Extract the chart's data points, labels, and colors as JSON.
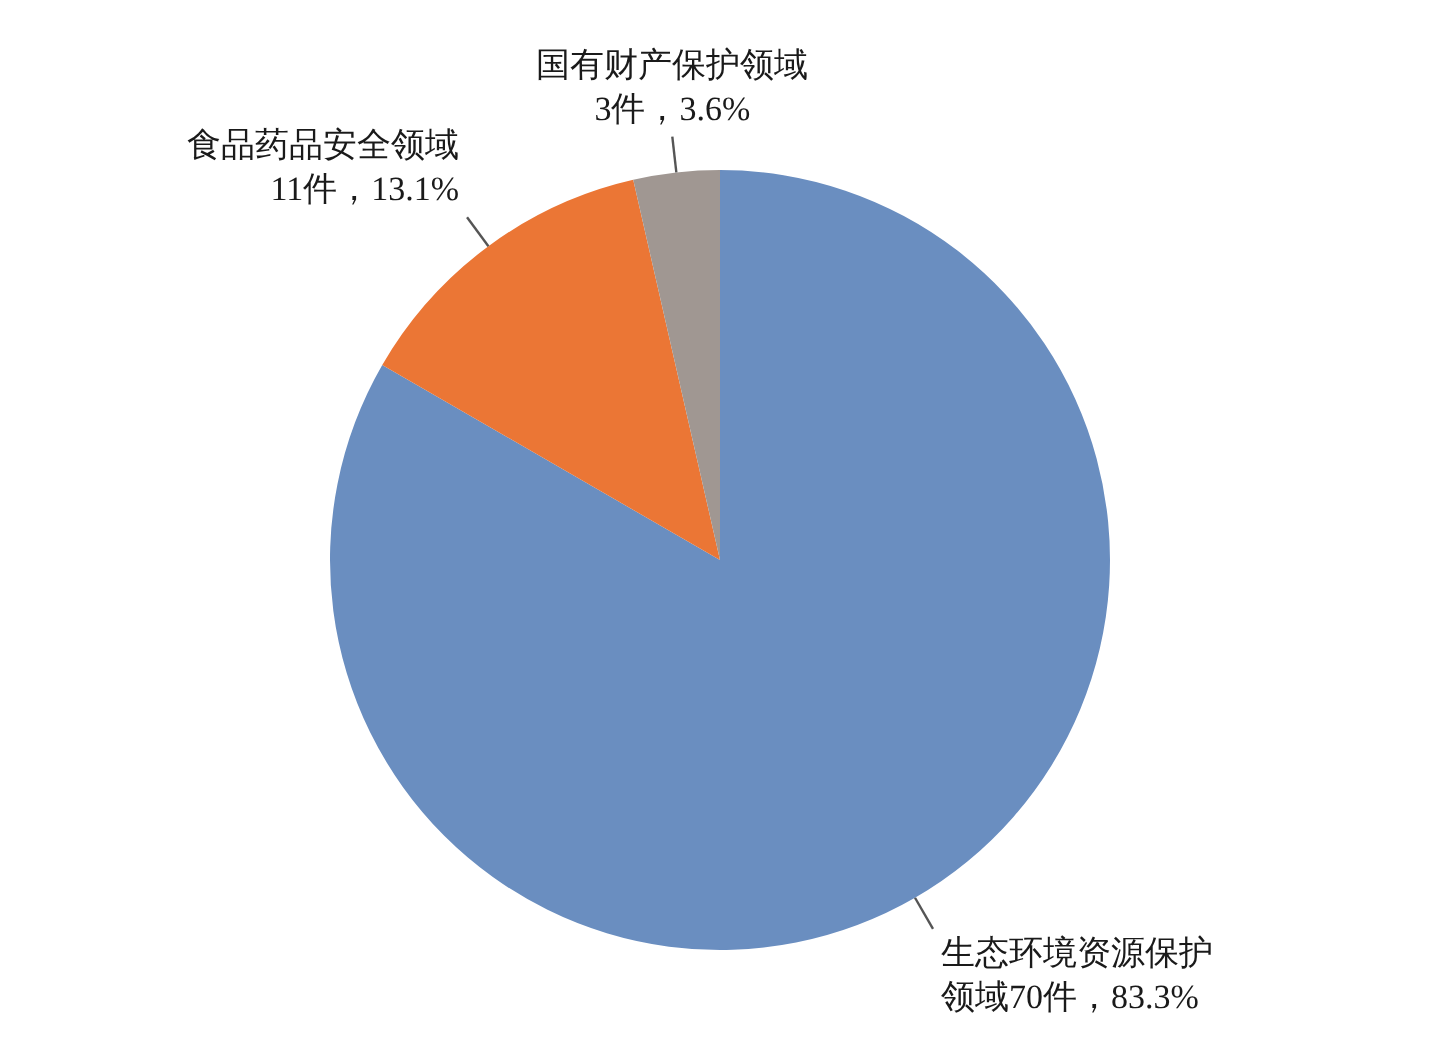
{
  "chart_data": {
    "type": "pie",
    "categories": [
      "生态环境资源保护领域",
      "食品药品安全领域",
      "国有财产保护领域"
    ],
    "values": [
      70,
      11,
      3
    ],
    "value_labels": [
      "70件，83.3%",
      "11件，13.1%",
      "3件，3.6%"
    ],
    "colors": [
      "#6a8ec0",
      "#eb7635",
      "#a09792"
    ],
    "legend": false
  }
}
